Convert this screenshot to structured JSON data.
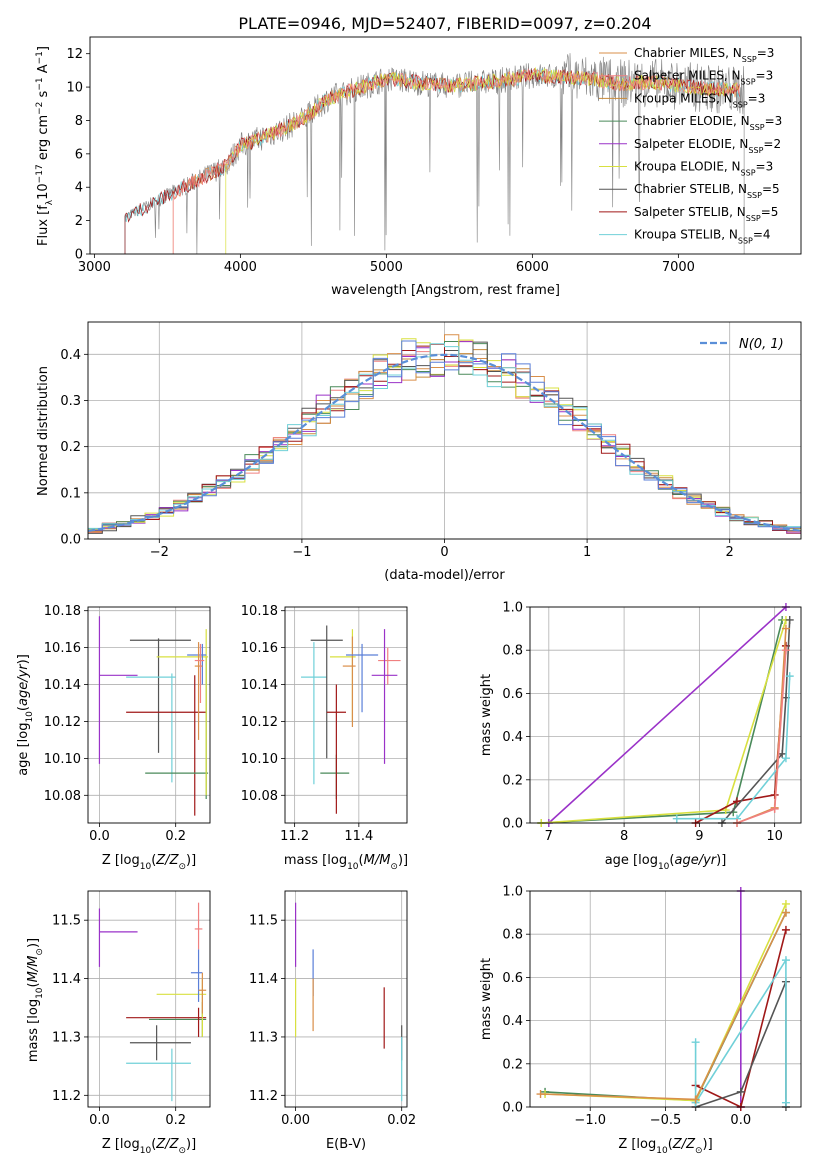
{
  "figure_title": "PLATE=0946, MJD=52407, FIBERID=0097, z=0.204",
  "colors": {
    "Chabrier MILES": "#d98f4a",
    "Salpeter MILES": "#f08080",
    "Kroupa MILES": "#c88a3a",
    "Chabrier ELODIE": "#4a8a5a",
    "Salpeter ELODIE": "#9a32c8",
    "Kroupa ELODIE": "#d8e040",
    "Chabrier STELIB": "#555555",
    "Salpeter STELIB": "#a01818",
    "Kroupa STELIB": "#70d0d8",
    "extra_blue": "#5a7fd8",
    "spectrum": "#808080",
    "orange_dark": "#e07020",
    "gauss": "#5a8fd8",
    "grid": "#b0b0b0"
  },
  "chart_data": [
    {
      "type": "line",
      "panel": "spectrum",
      "xlabel": "wavelength [Angstrom, rest frame]",
      "ylabel": "Flux [f_λ 10^-17 erg cm^-2 s^-1 A^-1]",
      "xlim": [
        2970,
        7840
      ],
      "ylim": [
        0,
        13
      ],
      "xticks": [
        3000,
        4000,
        5000,
        6000,
        7000
      ],
      "yticks": [
        0,
        2,
        4,
        6,
        8,
        10,
        12
      ],
      "grid": false,
      "legend_position": "top-right",
      "legend": [
        {
          "label": "Chabrier MILES, N",
          "sub": "SSP",
          "tail": "=3"
        },
        {
          "label": "Salpeter MILES, N",
          "sub": "SSP",
          "tail": "=3"
        },
        {
          "label": "Kroupa MILES, N",
          "sub": "SSP",
          "tail": "=3"
        },
        {
          "label": "Chabrier ELODIE, N",
          "sub": "SSP",
          "tail": "=3"
        },
        {
          "label": "Salpeter ELODIE, N",
          "sub": "SSP",
          "tail": "=2"
        },
        {
          "label": "Kroupa ELODIE, N",
          "sub": "SSP",
          "tail": "=3"
        },
        {
          "label": "Chabrier STELIB, N",
          "sub": "SSP",
          "tail": "=5"
        },
        {
          "label": "Salpeter STELIB, N",
          "sub": "SSP",
          "tail": "=5"
        },
        {
          "label": "Kroupa STELIB, N",
          "sub": "SSP",
          "tail": "=4"
        }
      ],
      "continuum_x": [
        3210,
        3300,
        3500,
        3700,
        3900,
        4000,
        4100,
        4300,
        4450,
        4600,
        4800,
        5000,
        5200,
        5400,
        5600,
        5800,
        6000,
        6200,
        6400,
        6600,
        6800,
        7000,
        7200,
        7450
      ],
      "continuum_y": [
        2.2,
        2.6,
        3.5,
        4.4,
        5.3,
        6.5,
        6.8,
        7.5,
        8.2,
        9.3,
        9.9,
        10.5,
        10.3,
        10.1,
        10.2,
        10.4,
        10.7,
        10.6,
        10.5,
        10.2,
        10.3,
        10.1,
        9.9,
        9.8
      ]
    },
    {
      "type": "line",
      "panel": "histogram",
      "xlabel": "(data-model)/error",
      "ylabel": "Normed distribution",
      "xlim": [
        -2.5,
        2.5
      ],
      "ylim": [
        0,
        0.47
      ],
      "xticks": [
        -2,
        -1,
        0,
        1,
        2
      ],
      "yticks": [
        0.0,
        0.1,
        0.2,
        0.3,
        0.4
      ],
      "grid": true,
      "legend_position": "top-right",
      "gauss_label": "N(0, 1)",
      "bin_width": 0.1
    },
    {
      "type": "scatter",
      "panel": "Z_vs_age",
      "xlabel": "Z [log10(Z/Z⊙)]",
      "ylabel": "age  [log10(age/yr)]",
      "xlim": [
        -0.03,
        0.29
      ],
      "ylim": [
        10.065,
        10.182
      ],
      "xticks": [
        0.0,
        0.2
      ],
      "yticks": [
        10.08,
        10.1,
        10.12,
        10.14,
        10.16,
        10.18
      ],
      "grid": true,
      "points": [
        {
          "s": "Salpeter ELODIE",
          "x": 0.0,
          "xe": [
            0.0,
            0.1
          ],
          "y": 10.145,
          "ye": [
            10.097,
            10.177
          ]
        },
        {
          "s": "Chabrier STELIB",
          "x": 0.155,
          "xe": [
            0.08,
            0.24
          ],
          "y": 10.164,
          "ye": [
            10.103,
            10.165
          ]
        },
        {
          "s": "Kroupa STELIB",
          "x": 0.19,
          "xe": [
            0.07,
            0.2
          ],
          "y": 10.144,
          "ye": [
            10.087,
            10.146
          ]
        },
        {
          "s": "Salpeter STELIB",
          "x": 0.25,
          "xe": [
            0.07,
            0.28
          ],
          "y": 10.125,
          "ye": [
            10.069,
            10.145
          ]
        },
        {
          "s": "Chabrier ELODIE",
          "x": 0.28,
          "xe": [
            0.12,
            0.285
          ],
          "y": 10.092,
          "ye": [
            10.078,
            10.155
          ]
        },
        {
          "s": "Kroupa ELODIE",
          "x": 0.28,
          "xe": [
            0.15,
            0.285
          ],
          "y": 10.155,
          "ye": [
            10.08,
            10.17
          ]
        },
        {
          "s": "extra_blue",
          "x": 0.27,
          "xe": [
            0.23,
            0.28
          ],
          "y": 10.156,
          "ye": [
            10.14,
            10.162
          ]
        },
        {
          "s": "Chabrier MILES",
          "x": 0.26,
          "xe": [
            0.25,
            0.27
          ],
          "y": 10.15,
          "ye": [
            10.11,
            10.163
          ]
        },
        {
          "s": "Salpeter MILES",
          "x": 0.265,
          "xe": [
            0.25,
            0.275
          ],
          "y": 10.153,
          "ye": [
            10.13,
            10.162
          ]
        }
      ]
    },
    {
      "type": "scatter",
      "panel": "mass_vs_age",
      "xlabel": "mass [log10(M/M⊙)]",
      "ylabel": "",
      "xlim": [
        11.17,
        11.55
      ],
      "ylim": [
        10.065,
        10.182
      ],
      "xticks": [
        11.2,
        11.4
      ],
      "yticks": [
        10.08,
        10.1,
        10.12,
        10.14,
        10.16,
        10.18
      ],
      "grid": true,
      "points": [
        {
          "s": "Kroupa STELIB",
          "x": 11.26,
          "xe": [
            11.22,
            11.3
          ],
          "y": 10.144,
          "ye": [
            10.086,
            10.163
          ]
        },
        {
          "s": "Chabrier STELIB",
          "x": 11.3,
          "xe": [
            11.25,
            11.35
          ],
          "y": 10.164,
          "ye": [
            10.1,
            10.172
          ]
        },
        {
          "s": "Chabrier ELODIE",
          "x": 11.33,
          "xe": [
            11.28,
            11.37
          ],
          "y": 10.092,
          "ye": [
            10.078,
            10.102
          ]
        },
        {
          "s": "Salpeter STELIB",
          "x": 11.33,
          "xe": [
            11.3,
            11.36
          ],
          "y": 10.125,
          "ye": [
            10.07,
            10.14
          ]
        },
        {
          "s": "Kroupa ELODIE",
          "x": 11.38,
          "xe": [
            11.31,
            11.39
          ],
          "y": 10.155,
          "ye": [
            10.12,
            10.17
          ]
        },
        {
          "s": "Chabrier MILES",
          "x": 11.38,
          "xe": [
            11.35,
            11.39
          ],
          "y": 10.15,
          "ye": [
            10.117,
            10.166
          ]
        },
        {
          "s": "extra_blue",
          "x": 11.41,
          "xe": [
            11.36,
            11.46
          ],
          "y": 10.156,
          "ye": [
            10.125,
            10.162
          ]
        },
        {
          "s": "Salpeter MILES",
          "x": 11.49,
          "xe": [
            11.46,
            11.53
          ],
          "y": 10.153,
          "ye": [
            10.14,
            10.16
          ]
        },
        {
          "s": "Salpeter ELODIE",
          "x": 11.48,
          "xe": [
            11.44,
            11.52
          ],
          "y": 10.145,
          "ye": [
            10.097,
            10.17
          ]
        }
      ]
    },
    {
      "type": "line",
      "panel": "age_vs_weight",
      "xlabel": "age  [log10(age/yr)]",
      "ylabel": "mass weight",
      "xlim": [
        6.75,
        10.35
      ],
      "ylim": [
        0,
        1.0
      ],
      "xticks": [
        7,
        8,
        9,
        10
      ],
      "yticks": [
        0.0,
        0.2,
        0.4,
        0.6,
        0.8,
        1.0
      ],
      "grid": true,
      "series": [
        {
          "s": "Salpeter ELODIE",
          "x": [
            7.0,
            10.15
          ],
          "y": [
            0.0,
            1.0
          ]
        },
        {
          "s": "Chabrier ELODIE",
          "x": [
            6.9,
            9.45,
            10.1
          ],
          "y": [
            0.0,
            0.05,
            0.94
          ]
        },
        {
          "s": "Kroupa ELODIE",
          "x": [
            6.9,
            9.35,
            10.15
          ],
          "y": [
            0.0,
            0.06,
            0.94
          ]
        },
        {
          "s": "Salpeter STELIB",
          "x": [
            8.95,
            9.5,
            10.0,
            10.15
          ],
          "y": [
            0.0,
            0.1,
            0.13,
            0.82
          ]
        },
        {
          "s": "Chabrier STELIB",
          "x": [
            9.3,
            10.1,
            10.15,
            10.2
          ],
          "y": [
            0.0,
            0.32,
            0.58,
            0.94
          ]
        },
        {
          "s": "Kroupa STELIB",
          "x": [
            8.7,
            9.5,
            10.15,
            10.2
          ],
          "y": [
            0.02,
            0.02,
            0.3,
            0.68
          ]
        },
        {
          "s": "Chabrier MILES",
          "x": [
            9.5,
            10.0,
            10.15
          ],
          "y": [
            0.0,
            0.07,
            0.9
          ]
        },
        {
          "s": "Salpeter MILES",
          "x": [
            9.5,
            10.0,
            10.15
          ],
          "y": [
            0.0,
            0.065,
            0.8
          ]
        }
      ]
    },
    {
      "type": "scatter",
      "panel": "Z_vs_mass",
      "xlabel": "Z [log10(Z/Z⊙)]",
      "ylabel": "mass [log10(M/M⊙)]",
      "xlim": [
        -0.03,
        0.29
      ],
      "ylim": [
        11.18,
        11.55
      ],
      "xticks": [
        0.0,
        0.2
      ],
      "yticks": [
        11.2,
        11.3,
        11.4,
        11.5
      ],
      "grid": true,
      "points": [
        {
          "s": "Salpeter ELODIE",
          "x": 0.0,
          "xe": [
            0.0,
            0.1
          ],
          "y": 11.48,
          "ye": [
            11.42,
            11.52
          ]
        },
        {
          "s": "Kroupa STELIB",
          "x": 0.19,
          "xe": [
            0.07,
            0.24
          ],
          "y": 11.255,
          "ye": [
            11.19,
            11.28
          ]
        },
        {
          "s": "Chabrier STELIB",
          "x": 0.15,
          "xe": [
            0.08,
            0.24
          ],
          "y": 11.29,
          "ye": [
            11.26,
            11.32
          ]
        },
        {
          "s": "Chabrier ELODIE",
          "x": 0.27,
          "xe": [
            0.13,
            0.28
          ],
          "y": 11.33,
          "ye": [
            11.3,
            11.36
          ]
        },
        {
          "s": "Salpeter STELIB",
          "x": 0.26,
          "xe": [
            0.07,
            0.28
          ],
          "y": 11.333,
          "ye": [
            11.3,
            11.35
          ]
        },
        {
          "s": "Kroupa ELODIE",
          "x": 0.27,
          "xe": [
            0.15,
            0.28
          ],
          "y": 11.373,
          "ye": [
            11.3,
            11.4
          ]
        },
        {
          "s": "extra_blue",
          "x": 0.26,
          "xe": [
            0.24,
            0.27
          ],
          "y": 11.41,
          "ye": [
            11.36,
            11.45
          ]
        },
        {
          "s": "Chabrier MILES",
          "x": 0.27,
          "xe": [
            0.26,
            0.28
          ],
          "y": 11.38,
          "ye": [
            11.34,
            11.41
          ]
        },
        {
          "s": "Salpeter MILES",
          "x": 0.26,
          "xe": [
            0.25,
            0.27
          ],
          "y": 11.485,
          "ye": [
            11.45,
            11.53
          ]
        }
      ]
    },
    {
      "type": "scatter",
      "panel": "EBV_vs_mass",
      "xlabel": "E(B-V)",
      "ylabel": "",
      "xlim": [
        -0.002,
        0.021
      ],
      "ylim": [
        11.18,
        11.55
      ],
      "xticks": [
        0.0,
        0.02
      ],
      "yticks": [
        11.2,
        11.3,
        11.4,
        11.5
      ],
      "grid": true,
      "points": [
        {
          "s": "Salpeter ELODIE",
          "x": 0.0,
          "xe": [
            0.0,
            0.0
          ],
          "y": 11.48,
          "ye": [
            11.42,
            11.53
          ]
        },
        {
          "s": "Kroupa ELODIE",
          "x": 0.0,
          "xe": [
            0.0,
            0.0
          ],
          "y": 11.36,
          "ye": [
            11.3,
            11.4
          ]
        },
        {
          "s": "extra_blue",
          "x": 0.0033,
          "xe": [
            0.0033,
            0.0033
          ],
          "y": 11.41,
          "ye": [
            11.37,
            11.45
          ]
        },
        {
          "s": "Chabrier MILES",
          "x": 0.0033,
          "xe": [
            0.0033,
            0.0033
          ],
          "y": 11.36,
          "ye": [
            11.31,
            11.4
          ]
        },
        {
          "s": "Salpeter STELIB",
          "x": 0.0167,
          "xe": [
            0.0167,
            0.0167
          ],
          "y": 11.333,
          "ye": [
            11.28,
            11.385
          ]
        },
        {
          "s": "Chabrier STELIB",
          "x": 0.02,
          "xe": [
            0.02,
            0.02
          ],
          "y": 11.29,
          "ye": [
            11.26,
            11.32
          ]
        },
        {
          "s": "Kroupa STELIB",
          "x": 0.02,
          "xe": [
            0.02,
            0.02
          ],
          "y": 11.255,
          "ye": [
            11.19,
            11.3
          ]
        }
      ]
    },
    {
      "type": "line",
      "panel": "Z_vs_weight",
      "xlabel": "Z [log10(Z/Z⊙)]",
      "ylabel": "mass weight",
      "xlim": [
        -1.4,
        0.4
      ],
      "ylim": [
        0,
        1.0
      ],
      "xticks": [
        -1.0,
        -0.5,
        0.0
      ],
      "yticks": [
        0.0,
        0.2,
        0.4,
        0.6,
        0.8,
        1.0
      ],
      "grid": true,
      "series": [
        {
          "s": "Salpeter ELODIE",
          "x": [
            0.0,
            0.0
          ],
          "y": [
            0.0,
            1.0
          ]
        },
        {
          "s": "Chabrier ELODIE",
          "x": [
            -1.3,
            -0.3,
            0.3
          ],
          "y": [
            0.07,
            0.03,
            0.9
          ]
        },
        {
          "s": "Kroupa ELODIE",
          "x": [
            -1.3,
            -0.3,
            0.3
          ],
          "y": [
            0.06,
            0.03,
            0.94
          ]
        },
        {
          "s": "Salpeter STELIB",
          "x": [
            -0.3,
            0.0,
            0.3
          ],
          "y": [
            0.1,
            0.0,
            0.82
          ]
        },
        {
          "s": "Chabrier STELIB",
          "x": [
            -0.3,
            0.0,
            0.3,
            0.3
          ],
          "y": [
            0.0,
            0.07,
            0.58,
            0.0
          ]
        },
        {
          "s": "Kroupa STELIB",
          "x": [
            -0.3,
            -0.3,
            0.3,
            0.3
          ],
          "y": [
            0.3,
            0.02,
            0.68,
            0.02
          ]
        },
        {
          "s": "Chabrier MILES",
          "x": [
            -1.33,
            -0.3,
            0.3
          ],
          "y": [
            0.06,
            0.035,
            0.9
          ]
        }
      ]
    }
  ]
}
